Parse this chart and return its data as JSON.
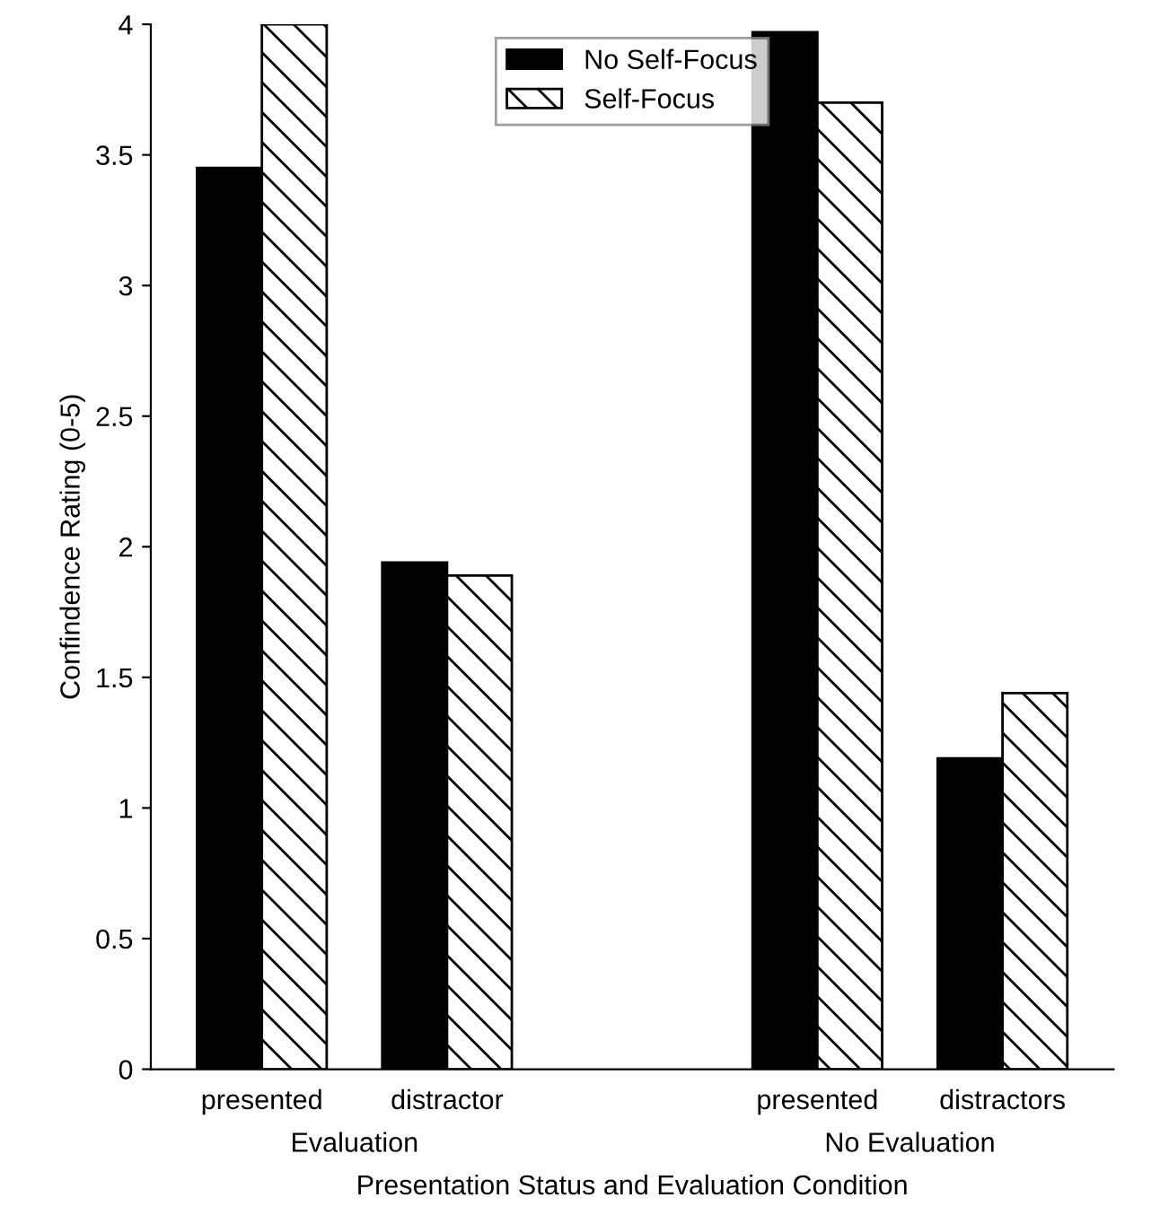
{
  "chart_data": {
    "type": "bar",
    "xlabel": "Presentation Status and Evaluation Condition",
    "ylabel": "Confindence Rating (0-5)",
    "categories": [
      "presented",
      "distractor",
      null,
      "presented",
      "distractors"
    ],
    "series": [
      {
        "name": "No Self-Focus",
        "color": "#000000",
        "values": [
          3.45,
          1.94,
          null,
          3.97,
          1.19
        ]
      },
      {
        "name": "Self-Focus",
        "color": "#000000",
        "values": [
          4.0,
          1.89,
          null,
          3.7,
          1.44
        ]
      }
    ],
    "annotations": [
      "Evaluation",
      "No Evaluation"
    ],
    "ylim": [
      0,
      4
    ],
    "yticks": [
      0,
      0.5,
      1,
      1.5,
      2,
      2.5,
      3,
      3.5,
      4
    ],
    "grid": false,
    "legend": "top"
  }
}
